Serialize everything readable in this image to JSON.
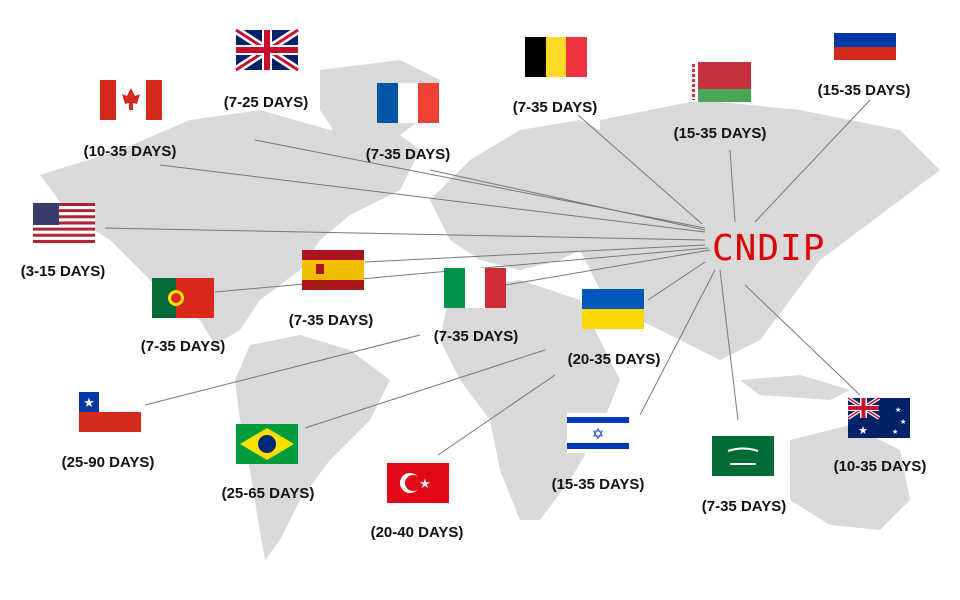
{
  "hub": {
    "label": "CNDIP",
    "color": "#e00000"
  },
  "map": {
    "land_color": "#d9d9d9",
    "line_color": "#777777"
  },
  "destinations": [
    {
      "flag": "uk-flag-icon",
      "label": "(7-25 DAYS)"
    },
    {
      "flag": "canada-flag-icon",
      "label": "(10-35 DAYS)"
    },
    {
      "flag": "france-flag-icon",
      "label": "(7-35 DAYS)"
    },
    {
      "flag": "belgium-flag-icon",
      "label": "(7-35 DAYS)"
    },
    {
      "flag": "belarus-flag-icon",
      "label": "(15-35 DAYS)"
    },
    {
      "flag": "russia-flag-icon",
      "label": "(15-35 DAYS)"
    },
    {
      "flag": "usa-flag-icon",
      "label": "(3-15 DAYS)"
    },
    {
      "flag": "spain-flag-icon",
      "label": "(7-35 DAYS)"
    },
    {
      "flag": "portugal-flag-icon",
      "label": "(7-35 DAYS)"
    },
    {
      "flag": "italy-flag-icon",
      "label": "(7-35 DAYS)"
    },
    {
      "flag": "ukraine-flag-icon",
      "label": "(20-35 DAYS)"
    },
    {
      "flag": "chile-flag-icon",
      "label": "(25-90 DAYS)"
    },
    {
      "flag": "brazil-flag-icon",
      "label": "(25-65 DAYS)"
    },
    {
      "flag": "turkey-flag-icon",
      "label": "(20-40 DAYS)"
    },
    {
      "flag": "israel-flag-icon",
      "label": "(15-35 DAYS)"
    },
    {
      "flag": "saudi-arabia-flag-icon",
      "label": "(7-35 DAYS)"
    },
    {
      "flag": "australia-flag-icon",
      "label": "(10-35 DAYS)"
    }
  ]
}
